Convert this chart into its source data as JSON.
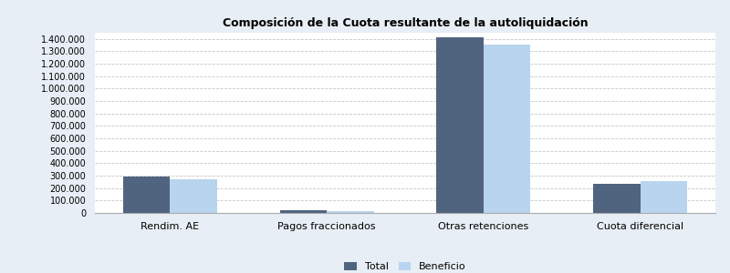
{
  "title": "Composición de la Cuota resultante de la autoliquidación",
  "categories": [
    "Rendim. AE",
    "Pagos fraccionados",
    "Otras retenciones",
    "Cuota diferencial"
  ],
  "total_values": [
    295000,
    20000,
    1410000,
    235000
  ],
  "beneficio_values": [
    270000,
    18000,
    1355000,
    255000
  ],
  "color_total": "#506480",
  "color_beneficio": "#b8d4ee",
  "ylim": [
    0,
    1450000
  ],
  "ytick_values": [
    0,
    100000,
    200000,
    300000,
    400000,
    500000,
    600000,
    700000,
    800000,
    900000,
    1000000,
    1100000,
    1200000,
    1300000,
    1400000
  ],
  "legend_labels": [
    "Total",
    "Beneficio"
  ],
  "plot_bg_color": "#ffffff",
  "fig_bg_color": "#e8eef5",
  "grid_color": "#c8c8c8",
  "bar_width": 0.3,
  "title_fontsize": 9,
  "tick_fontsize": 7,
  "xlabel_fontsize": 8
}
